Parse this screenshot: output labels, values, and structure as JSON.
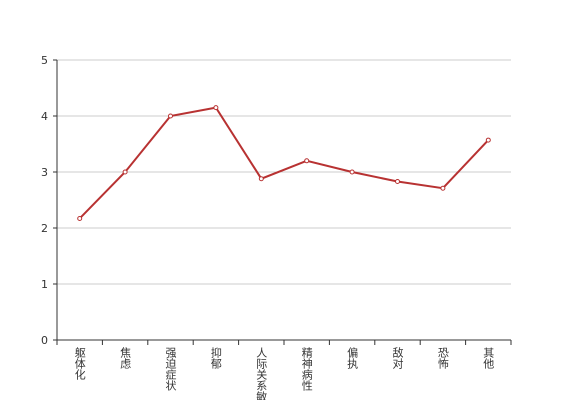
{
  "chart_data": {
    "type": "line",
    "categories": [
      "躯体化",
      "焦虑",
      "强迫症状",
      "抑郁",
      "人际关系敏感",
      "精神病性",
      "偏执",
      "敌对",
      "恐怖",
      "其他"
    ],
    "series": [
      {
        "color": "#b83232",
        "values": [
          2.17,
          3.0,
          4.0,
          4.15,
          2.88,
          3.2,
          3.0,
          2.83,
          2.71,
          3.57
        ]
      }
    ],
    "ylim": [
      0,
      5
    ],
    "yticks": [
      0,
      1,
      2,
      3,
      4,
      5
    ],
    "grid": true
  }
}
